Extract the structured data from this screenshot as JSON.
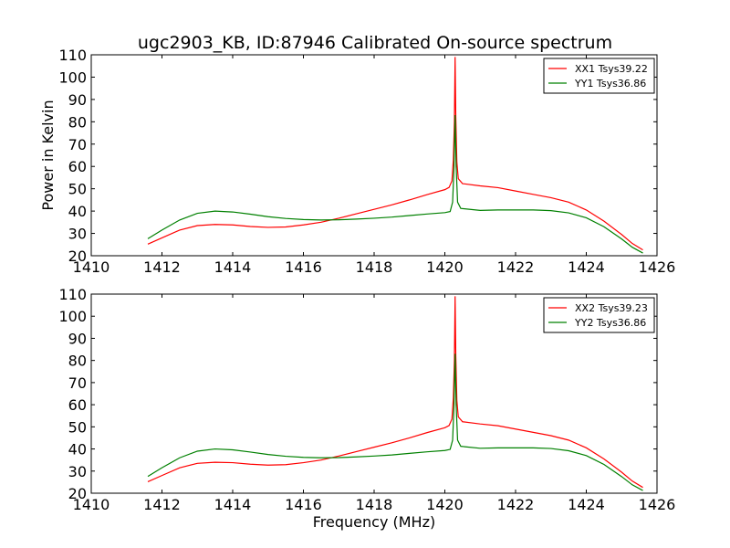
{
  "title": "ugc2903_KB, ID:87946 Calibrated On-source spectrum",
  "colors": {
    "XX": "#ff0000",
    "YY": "#008000"
  },
  "chart_data": [
    {
      "type": "line",
      "xlabel": "",
      "ylabel": "Power in Kelvin",
      "xlim": [
        1410,
        1426
      ],
      "ylim": [
        20,
        110
      ],
      "xticks": [
        "1410",
        "1412",
        "1414",
        "1416",
        "1418",
        "1420",
        "1422",
        "1424",
        "1426"
      ],
      "yticks": [
        "20",
        "30",
        "40",
        "50",
        "60",
        "70",
        "80",
        "90",
        "100",
        "110"
      ],
      "legend": "top-right",
      "series": [
        {
          "name": "XX1 Tsys39.22",
          "color": "#ff0000",
          "points": [
            [
              1411.6,
              25.2
            ],
            [
              1412.0,
              28.0
            ],
            [
              1412.5,
              31.5
            ],
            [
              1413.0,
              33.5
            ],
            [
              1413.5,
              34.0
            ],
            [
              1414.0,
              33.8
            ],
            [
              1414.5,
              33.1
            ],
            [
              1415.0,
              32.7
            ],
            [
              1415.5,
              32.9
            ],
            [
              1416.0,
              33.8
            ],
            [
              1416.5,
              35.0
            ],
            [
              1417.0,
              36.8
            ],
            [
              1417.5,
              38.8
            ],
            [
              1418.0,
              40.8
            ],
            [
              1418.5,
              42.8
            ],
            [
              1419.0,
              45.0
            ],
            [
              1419.5,
              47.4
            ],
            [
              1420.0,
              49.6
            ],
            [
              1420.12,
              50.6
            ],
            [
              1420.2,
              53.5
            ],
            [
              1420.24,
              63.0
            ],
            [
              1420.27,
              80.0
            ],
            [
              1420.29,
              109.0
            ],
            [
              1420.31,
              82.0
            ],
            [
              1420.34,
              62.0
            ],
            [
              1420.38,
              54.5
            ],
            [
              1420.5,
              52.3
            ],
            [
              1421.0,
              51.3
            ],
            [
              1421.5,
              50.5
            ],
            [
              1422.0,
              49.0
            ],
            [
              1422.5,
              47.5
            ],
            [
              1423.0,
              46.0
            ],
            [
              1423.5,
              44.0
            ],
            [
              1424.0,
              40.5
            ],
            [
              1424.5,
              35.5
            ],
            [
              1425.0,
              29.5
            ],
            [
              1425.3,
              25.5
            ],
            [
              1425.6,
              22.6
            ]
          ]
        },
        {
          "name": "YY1 Tsys36.86",
          "color": "#008000",
          "points": [
            [
              1411.6,
              27.6
            ],
            [
              1412.0,
              31.5
            ],
            [
              1412.5,
              36.0
            ],
            [
              1413.0,
              39.0
            ],
            [
              1413.5,
              40.0
            ],
            [
              1414.0,
              39.6
            ],
            [
              1414.5,
              38.6
            ],
            [
              1415.0,
              37.5
            ],
            [
              1415.5,
              36.7
            ],
            [
              1416.0,
              36.2
            ],
            [
              1416.5,
              36.0
            ],
            [
              1417.0,
              36.1
            ],
            [
              1417.5,
              36.4
            ],
            [
              1418.0,
              36.8
            ],
            [
              1418.5,
              37.3
            ],
            [
              1419.0,
              38.0
            ],
            [
              1419.5,
              38.7
            ],
            [
              1420.0,
              39.3
            ],
            [
              1420.15,
              39.8
            ],
            [
              1420.22,
              44.0
            ],
            [
              1420.26,
              60.0
            ],
            [
              1420.29,
              83.0
            ],
            [
              1420.32,
              60.0
            ],
            [
              1420.36,
              44.0
            ],
            [
              1420.45,
              41.2
            ],
            [
              1421.0,
              40.3
            ],
            [
              1421.5,
              40.5
            ],
            [
              1422.0,
              40.5
            ],
            [
              1422.5,
              40.5
            ],
            [
              1423.0,
              40.2
            ],
            [
              1423.5,
              39.2
            ],
            [
              1424.0,
              37.0
            ],
            [
              1424.5,
              33.0
            ],
            [
              1425.0,
              27.5
            ],
            [
              1425.3,
              23.8
            ],
            [
              1425.6,
              21.2
            ]
          ]
        }
      ]
    },
    {
      "type": "line",
      "xlabel": "Frequency (MHz)",
      "ylabel": "",
      "xlim": [
        1410,
        1426
      ],
      "ylim": [
        20,
        110
      ],
      "xticks": [
        "1410",
        "1412",
        "1414",
        "1416",
        "1418",
        "1420",
        "1422",
        "1424",
        "1426"
      ],
      "yticks": [
        "20",
        "30",
        "40",
        "50",
        "60",
        "70",
        "80",
        "90",
        "100",
        "110"
      ],
      "legend": "top-right",
      "series": [
        {
          "name": "XX2 Tsys39.23",
          "color": "#ff0000",
          "points": [
            [
              1411.6,
              25.2
            ],
            [
              1412.0,
              28.0
            ],
            [
              1412.5,
              31.5
            ],
            [
              1413.0,
              33.5
            ],
            [
              1413.5,
              34.0
            ],
            [
              1414.0,
              33.8
            ],
            [
              1414.5,
              33.1
            ],
            [
              1415.0,
              32.7
            ],
            [
              1415.5,
              32.9
            ],
            [
              1416.0,
              33.8
            ],
            [
              1416.5,
              35.0
            ],
            [
              1417.0,
              36.8
            ],
            [
              1417.5,
              38.8
            ],
            [
              1418.0,
              40.8
            ],
            [
              1418.5,
              42.8
            ],
            [
              1419.0,
              45.0
            ],
            [
              1419.5,
              47.4
            ],
            [
              1420.0,
              49.6
            ],
            [
              1420.12,
              50.6
            ],
            [
              1420.2,
              53.5
            ],
            [
              1420.24,
              63.0
            ],
            [
              1420.27,
              80.0
            ],
            [
              1420.29,
              109.0
            ],
            [
              1420.31,
              82.0
            ],
            [
              1420.34,
              62.0
            ],
            [
              1420.38,
              54.5
            ],
            [
              1420.5,
              52.3
            ],
            [
              1421.0,
              51.3
            ],
            [
              1421.5,
              50.5
            ],
            [
              1422.0,
              49.0
            ],
            [
              1422.5,
              47.5
            ],
            [
              1423.0,
              46.0
            ],
            [
              1423.5,
              44.0
            ],
            [
              1424.0,
              40.5
            ],
            [
              1424.5,
              35.5
            ],
            [
              1425.0,
              29.5
            ],
            [
              1425.3,
              25.5
            ],
            [
              1425.6,
              22.6
            ]
          ]
        },
        {
          "name": "YY2 Tsys36.86",
          "color": "#008000",
          "points": [
            [
              1411.6,
              27.6
            ],
            [
              1412.0,
              31.5
            ],
            [
              1412.5,
              36.0
            ],
            [
              1413.0,
              39.0
            ],
            [
              1413.5,
              40.0
            ],
            [
              1414.0,
              39.6
            ],
            [
              1414.5,
              38.6
            ],
            [
              1415.0,
              37.5
            ],
            [
              1415.5,
              36.7
            ],
            [
              1416.0,
              36.2
            ],
            [
              1416.5,
              36.0
            ],
            [
              1417.0,
              36.1
            ],
            [
              1417.5,
              36.4
            ],
            [
              1418.0,
              36.8
            ],
            [
              1418.5,
              37.3
            ],
            [
              1419.0,
              38.0
            ],
            [
              1419.5,
              38.7
            ],
            [
              1420.0,
              39.3
            ],
            [
              1420.15,
              39.8
            ],
            [
              1420.22,
              44.0
            ],
            [
              1420.26,
              60.0
            ],
            [
              1420.29,
              83.0
            ],
            [
              1420.32,
              60.0
            ],
            [
              1420.36,
              44.0
            ],
            [
              1420.45,
              41.2
            ],
            [
              1421.0,
              40.3
            ],
            [
              1421.5,
              40.5
            ],
            [
              1422.0,
              40.5
            ],
            [
              1422.5,
              40.5
            ],
            [
              1423.0,
              40.2
            ],
            [
              1423.5,
              39.2
            ],
            [
              1424.0,
              37.0
            ],
            [
              1424.5,
              33.0
            ],
            [
              1425.0,
              27.5
            ],
            [
              1425.3,
              23.8
            ],
            [
              1425.6,
              21.2
            ]
          ]
        }
      ]
    }
  ]
}
